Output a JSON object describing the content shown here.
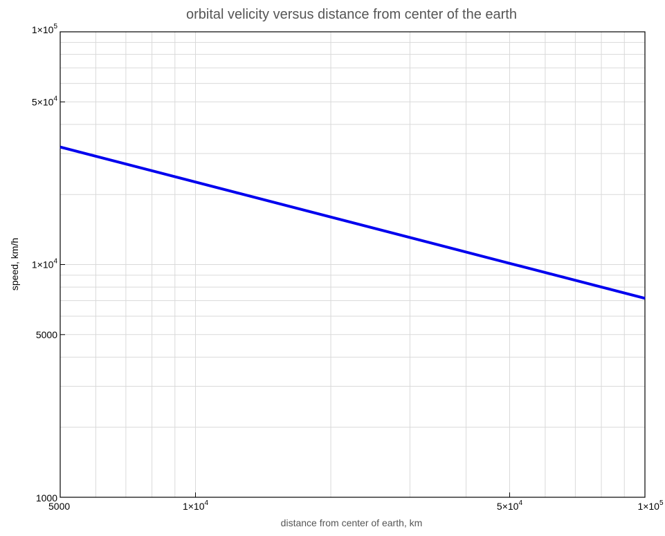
{
  "chart_data": {
    "type": "line",
    "title": "orbital velicity versus distance from center of the earth",
    "xlabel": "distance from center of earth, km",
    "ylabel": "speed, km/h",
    "x_scale": "log",
    "y_scale": "log",
    "xlim": [
      5000,
      100000
    ],
    "ylim": [
      1000,
      100000
    ],
    "grid": true,
    "x_ticks": [
      {
        "value": 5000,
        "label": "5000"
      },
      {
        "value": 10000,
        "label": "1×10",
        "sup": "4"
      },
      {
        "value": 50000,
        "label": "5×10",
        "sup": "4"
      },
      {
        "value": 100000,
        "label": "1×10",
        "sup": "5"
      }
    ],
    "y_ticks": [
      {
        "value": 1000,
        "label": "1000"
      },
      {
        "value": 5000,
        "label": "5000"
      },
      {
        "value": 10000,
        "label": "1×10",
        "sup": "4"
      },
      {
        "value": 50000,
        "label": "5×10",
        "sup": "4"
      },
      {
        "value": 100000,
        "label": "1×10",
        "sup": "5"
      }
    ],
    "series": [
      {
        "x": [
          5000,
          10000,
          20000,
          50000,
          100000
        ],
        "y": [
          32000,
          22630,
          16000,
          10120,
          7160
        ],
        "color": "#0000ee"
      }
    ]
  }
}
